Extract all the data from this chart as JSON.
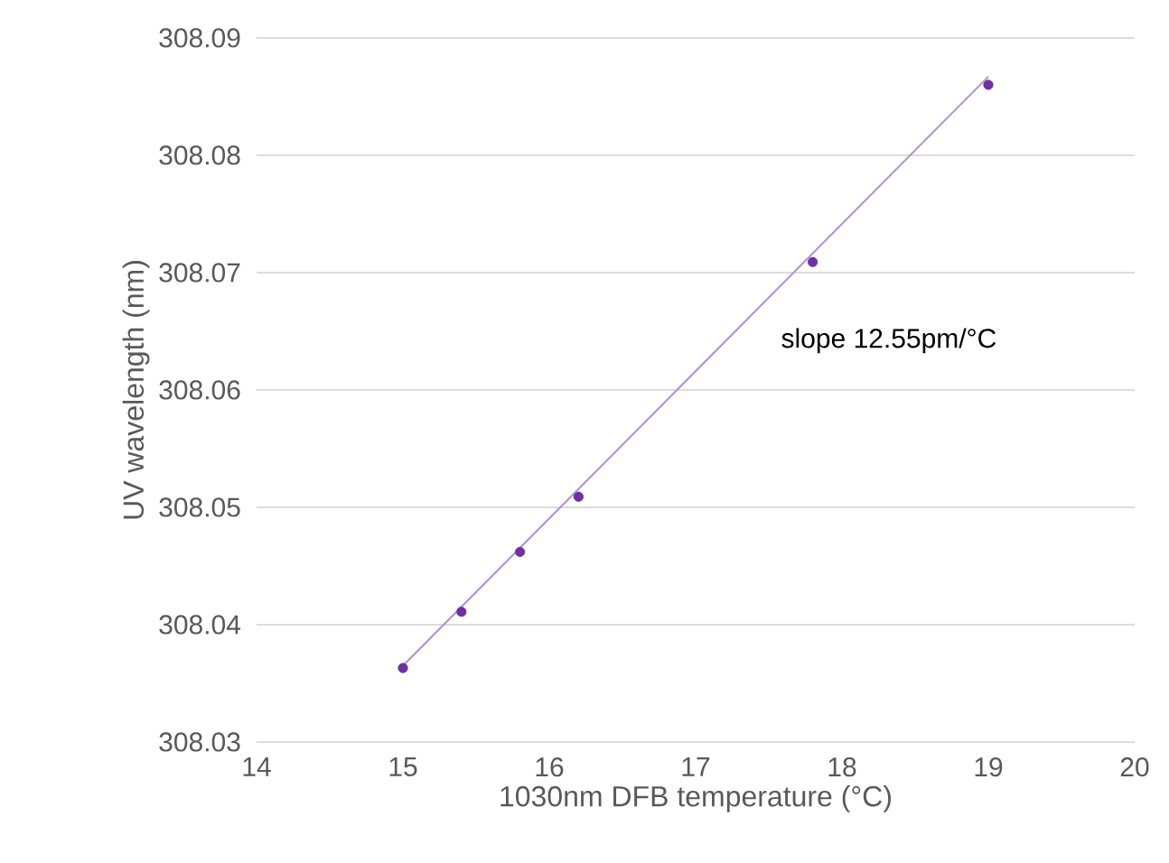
{
  "chart_data": {
    "type": "scatter",
    "xlabel": "1030nm DFB temperature (°C)",
    "ylabel": "UV wavelength (nm)",
    "xlim": [
      14,
      20
    ],
    "xticks": [
      14,
      15,
      16,
      17,
      18,
      19,
      20
    ],
    "ylim": [
      308.03,
      308.09
    ],
    "yticks": [
      308.03,
      308.04,
      308.05,
      308.06,
      308.07,
      308.08,
      308.09
    ],
    "grid": "y",
    "marker": "circle",
    "series": [
      {
        "color": "#7030a0",
        "x": [
          15,
          15.4,
          15.8,
          16.2,
          17.8,
          19
        ],
        "values": [
          308.0363,
          308.0411,
          308.0462,
          308.0509,
          308.0709,
          308.086
        ]
      },
      {
        "type": "line",
        "marker": "none",
        "color": "#b18fd0",
        "x": [
          15,
          19
        ],
        "values": [
          308.0365,
          308.0867
        ]
      }
    ],
    "annotations": [
      "slope 12.55pm/°C"
    ]
  }
}
